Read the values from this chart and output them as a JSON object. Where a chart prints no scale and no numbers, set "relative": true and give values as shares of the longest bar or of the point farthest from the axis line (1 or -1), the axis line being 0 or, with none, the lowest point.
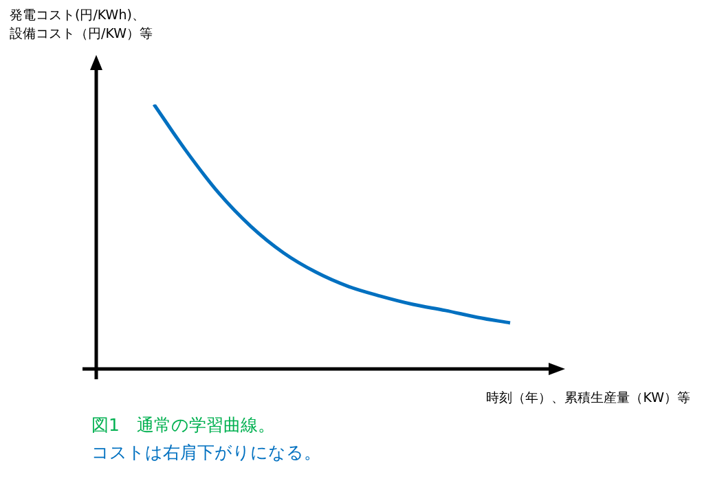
{
  "chart_data": {
    "type": "line",
    "relative": true,
    "ylabel": "発電コスト(円/KWh)、設備コスト（円/KW）等",
    "xlabel": "時刻（年）、累積生産量（KW）等",
    "annotations": [
      "図1　通常の学習曲線。",
      "コストは右肩下がりになる。"
    ],
    "categories": [
      null,
      null,
      null,
      null,
      null,
      null,
      null,
      null,
      null,
      null,
      null,
      null
    ],
    "series": [
      {
        "color": "#0070c0",
        "values": [
          1,
          0.823,
          0.665,
          0.538,
          0.439,
          0.366,
          0.312,
          0.275,
          0.244,
          0.221,
          0.195,
          0.174
        ]
      }
    ],
    "marker": "none",
    "line_style": "solid"
  }
}
